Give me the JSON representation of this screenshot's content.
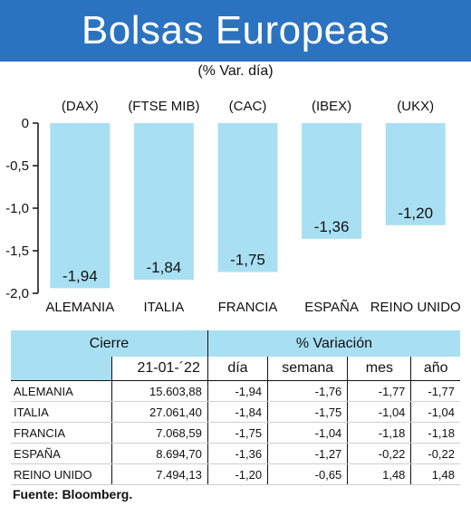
{
  "header": {
    "title": "Bolsas Europeas"
  },
  "subtitle": "(% Var. día)",
  "colors": {
    "header_bg": "#2b73c0",
    "bar_fill": "#a9dff3",
    "table_header_bg": "#a9dff3"
  },
  "chart_data": {
    "type": "bar",
    "categories": [
      "ALEMANIA",
      "ITALIA",
      "FRANCIA",
      "ESPAÑA",
      "REINO UNIDO"
    ],
    "index_labels": [
      "(DAX)",
      "(FTSE MIB)",
      "(CAC)",
      "(IBEX)",
      "(UKX)"
    ],
    "values": [
      -1.94,
      -1.84,
      -1.75,
      -1.36,
      -1.2
    ],
    "value_labels": [
      "-1,94",
      "-1,84",
      "-1,75",
      "-1,36",
      "-1,20"
    ],
    "y_ticks": [
      0,
      -0.5,
      -1.0,
      -1.5,
      -2.0
    ],
    "y_tick_labels": [
      "0",
      "-0,5",
      "-1,0",
      "-1,5",
      "-2,0"
    ],
    "ylim": [
      -2.0,
      0
    ],
    "grid": false
  },
  "table": {
    "group_headers": [
      "Cierre",
      "% Variación"
    ],
    "subheaders": [
      "21-01-´22",
      "día",
      "semana",
      "mes",
      "año"
    ],
    "rows": [
      {
        "name": "ALEMANIA",
        "cierre": "15.603,88",
        "dia": "-1,94",
        "semana": "-1,76",
        "mes": "-1,77",
        "ano": "-1,77"
      },
      {
        "name": "ITALIA",
        "cierre": "27.061,40",
        "dia": "-1,84",
        "semana": "-1,75",
        "mes": "-1,04",
        "ano": "-1,04"
      },
      {
        "name": "FRANCIA",
        "cierre": "7.068,59",
        "dia": "-1,75",
        "semana": "-1,04",
        "mes": "-1,18",
        "ano": "-1,18"
      },
      {
        "name": "ESPAÑA",
        "cierre": "8.694,70",
        "dia": "-1,36",
        "semana": "-1,27",
        "mes": "-0,22",
        "ano": "-0,22"
      },
      {
        "name": "REINO UNIDO",
        "cierre": "7.494,13",
        "dia": "-1,20",
        "semana": "-0,65",
        "mes": "1,48",
        "ano": "1,48"
      }
    ]
  },
  "source": "Fuente: Bloomberg."
}
